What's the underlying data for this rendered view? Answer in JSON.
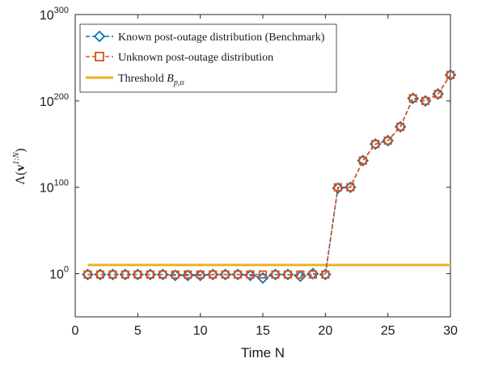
{
  "chart_data": {
    "type": "line",
    "title": "",
    "xlabel": "Time N",
    "ylabel": "Λ(v^{1:N})",
    "y_scale": "log",
    "xlim": [
      0,
      30
    ],
    "ylim_log10": [
      -50,
      300
    ],
    "x_ticks": [
      0,
      5,
      10,
      15,
      20,
      25,
      30
    ],
    "y_ticks": [
      {
        "log10": 0,
        "label": "0"
      },
      {
        "log10": 100,
        "label": "100"
      },
      {
        "log10": 200,
        "label": "200"
      },
      {
        "log10": 300,
        "label": "300"
      }
    ],
    "grid": false,
    "legend_position": "top-left",
    "ylabel_text": {
      "lambda": "Λ(",
      "v": "v",
      "sup": "1:N",
      "close": ")"
    },
    "series": [
      {
        "name": "Known post-outage distribution (Benchmark)",
        "color": "#0072BD",
        "marker": "diamond",
        "line_style": "dashed",
        "x": [
          1,
          2,
          3,
          4,
          5,
          6,
          7,
          8,
          9,
          10,
          11,
          12,
          13,
          14,
          15,
          16,
          17,
          18,
          19,
          20,
          21,
          22,
          23,
          24,
          25,
          26,
          27,
          28,
          29,
          30
        ],
        "y_log10": [
          -1,
          -1,
          -1,
          -1,
          -1,
          -1,
          -1,
          -2,
          -2,
          -2,
          -1,
          -1,
          -1,
          -2,
          -5,
          -1,
          -1,
          -3,
          0,
          -1,
          99,
          100,
          131,
          150,
          154,
          170,
          203,
          200,
          208,
          230
        ]
      },
      {
        "name": "Unknown post-outage distribution",
        "color": "#D95319",
        "marker": "square",
        "line_style": "dashed",
        "x": [
          1,
          2,
          3,
          4,
          5,
          6,
          7,
          8,
          9,
          10,
          11,
          12,
          13,
          14,
          15,
          16,
          17,
          18,
          19,
          20,
          21,
          22,
          23,
          24,
          25,
          26,
          27,
          28,
          29,
          30
        ],
        "y_log10": [
          -1,
          -1,
          -1,
          -1,
          -1,
          -1,
          -1,
          -1,
          -1,
          -1,
          -1,
          -1,
          -1,
          -1,
          -1,
          -1,
          -1,
          -1,
          -1,
          -1,
          100,
          100,
          131,
          150,
          154,
          170,
          203,
          200,
          208,
          230
        ]
      },
      {
        "name": "Threshold",
        "name_math": {
          "base": "B",
          "sub": "p,α"
        },
        "color": "#EDB120",
        "marker": "none",
        "line_style": "solid",
        "x": [
          1,
          30
        ],
        "y_log10": [
          10,
          10
        ]
      }
    ]
  }
}
